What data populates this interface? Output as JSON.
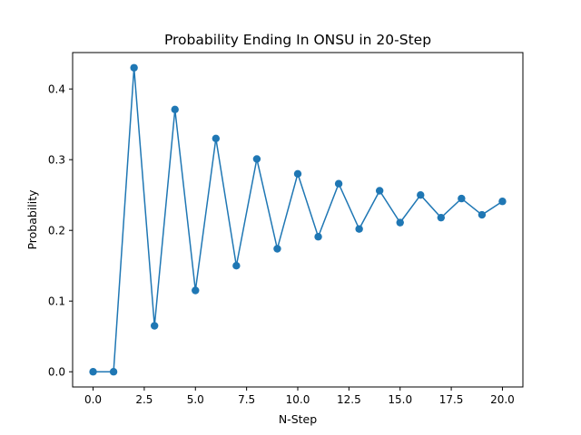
{
  "chart_data": {
    "type": "line",
    "title": "Probability Ending In  ONSU in 20-Step",
    "xlabel": "N-Step",
    "ylabel": "Probability",
    "xlim": [
      -1,
      21
    ],
    "ylim": [
      -0.0215,
      0.4515
    ],
    "xticks": [
      0.0,
      2.5,
      5.0,
      7.5,
      10.0,
      12.5,
      15.0,
      17.5,
      20.0
    ],
    "xtick_labels": [
      "0.0",
      "2.5",
      "5.0",
      "7.5",
      "10.0",
      "12.5",
      "15.0",
      "17.5",
      "20.0"
    ],
    "yticks": [
      0.0,
      0.1,
      0.2,
      0.3,
      0.4
    ],
    "ytick_labels": [
      "0.0",
      "0.1",
      "0.2",
      "0.3",
      "0.4"
    ],
    "grid": false,
    "series": [
      {
        "color": "#1f77b4",
        "marker": "circle",
        "x": [
          0,
          1,
          2,
          3,
          4,
          5,
          6,
          7,
          8,
          9,
          10,
          11,
          12,
          13,
          14,
          15,
          16,
          17,
          18,
          19,
          20
        ],
        "values": [
          0.0,
          0.0,
          0.43,
          0.065,
          0.371,
          0.115,
          0.33,
          0.15,
          0.301,
          0.174,
          0.28,
          0.191,
          0.266,
          0.202,
          0.256,
          0.211,
          0.25,
          0.218,
          0.245,
          0.222,
          0.241
        ]
      }
    ]
  }
}
